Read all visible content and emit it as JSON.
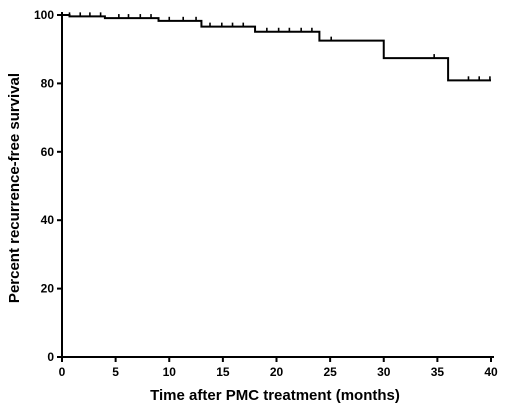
{
  "chart_data": {
    "type": "line",
    "step": true,
    "xlabel": "Time after PMC treatment (months)",
    "ylabel": "Percent recurrence-free survival",
    "xlim": [
      0,
      40
    ],
    "ylim": [
      0,
      100
    ],
    "xticks": [
      0,
      5,
      10,
      15,
      20,
      25,
      30,
      35,
      40
    ],
    "yticks": [
      0,
      20,
      40,
      60,
      80,
      100
    ],
    "grid": false,
    "series": [
      {
        "x": [
          0,
          0.7,
          4,
          9,
          13,
          18,
          24,
          30,
          36,
          40
        ],
        "y": [
          100,
          99.6,
          99.1,
          98.3,
          96.6,
          95.1,
          92.5,
          87.4,
          80.9,
          80.9
        ],
        "censored": [
          [
            0.7,
            99.6
          ],
          [
            1.7,
            99.6
          ],
          [
            2.6,
            99.6
          ],
          [
            3.6,
            99.6
          ],
          [
            5.3,
            99.1
          ],
          [
            6.2,
            99.1
          ],
          [
            7.3,
            99.1
          ],
          [
            8.3,
            99.1
          ],
          [
            10,
            98.3
          ],
          [
            11.3,
            98.3
          ],
          [
            12.5,
            98.3
          ],
          [
            13.8,
            96.6
          ],
          [
            14.9,
            96.6
          ],
          [
            15.9,
            96.6
          ],
          [
            16.9,
            96.6
          ],
          [
            19.1,
            95.1
          ],
          [
            20.2,
            95.1
          ],
          [
            21.2,
            95.1
          ],
          [
            22.3,
            95.1
          ],
          [
            23.3,
            95.1
          ],
          [
            25.1,
            92.5
          ],
          [
            34.7,
            87.4
          ],
          [
            37.9,
            80.9
          ],
          [
            38.9,
            80.9
          ],
          [
            39.9,
            80.9
          ]
        ]
      }
    ]
  }
}
